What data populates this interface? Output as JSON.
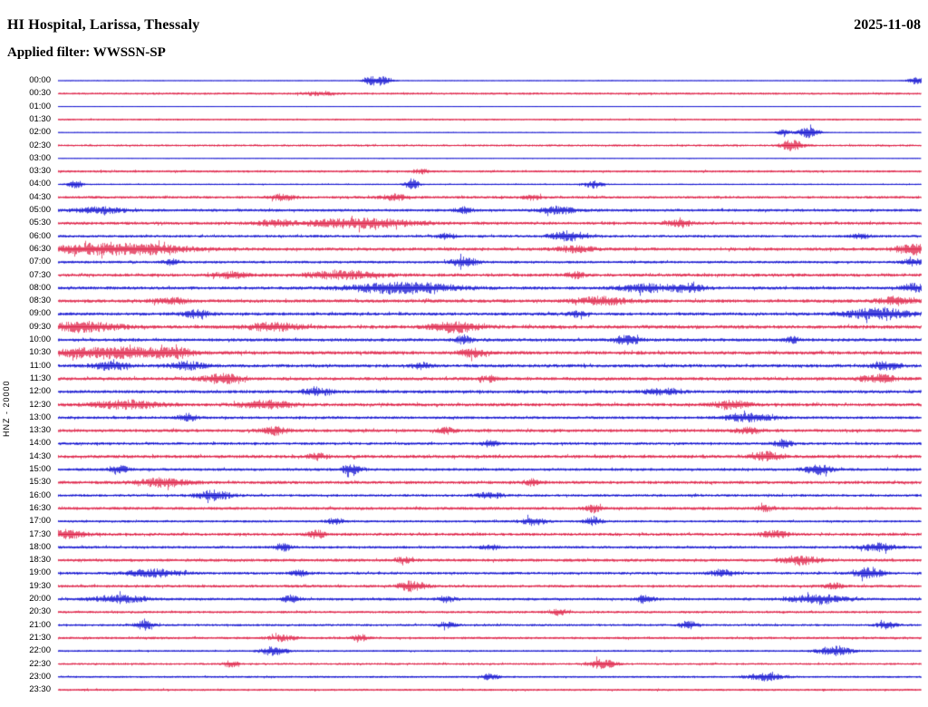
{
  "header": {
    "station_title": "HI Hospital, Larissa, Thessaly",
    "date": "2025-11-08",
    "filter_label": "Applied filter: WWSSN-SP"
  },
  "axis": {
    "vertical_label": "HNZ - 20000"
  },
  "chart_data": {
    "type": "line",
    "subtype": "helicorder-seismogram",
    "title": "HI Hospital, Larissa, Thessaly",
    "date": "2025-11-08",
    "filter": "WWSSN-SP",
    "channel": "HNZ",
    "scale": 20000,
    "minutes_per_line": 30,
    "legend_position": "none",
    "grid": false,
    "trace_colors": {
      "blue": "#0000cd",
      "red": "#dc143c"
    },
    "rows": [
      {
        "time": "00:00",
        "color": "blue",
        "amp": 0.5,
        "bursts": [
          [
            0.374,
            0.012,
            5
          ],
          [
            0.36,
            0.008,
            3
          ],
          [
            0.995,
            0.01,
            4
          ]
        ]
      },
      {
        "time": "00:30",
        "color": "red",
        "amp": 1.2,
        "bursts": [
          [
            0.3,
            0.02,
            1.5
          ]
        ]
      },
      {
        "time": "01:00",
        "color": "blue",
        "amp": 0.4,
        "bursts": []
      },
      {
        "time": "01:30",
        "color": "red",
        "amp": 1.0,
        "bursts": []
      },
      {
        "time": "02:00",
        "color": "blue",
        "amp": 0.5,
        "bursts": [
          [
            0.87,
            0.012,
            6
          ],
          [
            0.84,
            0.008,
            3
          ]
        ]
      },
      {
        "time": "02:30",
        "color": "red",
        "amp": 1.2,
        "bursts": [
          [
            0.85,
            0.012,
            6
          ]
        ]
      },
      {
        "time": "03:00",
        "color": "blue",
        "amp": 0.45,
        "bursts": []
      },
      {
        "time": "03:30",
        "color": "red",
        "amp": 1.3,
        "bursts": [
          [
            0.42,
            0.01,
            2
          ]
        ]
      },
      {
        "time": "04:00",
        "color": "blue",
        "amp": 0.8,
        "bursts": [
          [
            0.02,
            0.008,
            5
          ],
          [
            0.41,
            0.008,
            6
          ],
          [
            0.62,
            0.01,
            4
          ]
        ]
      },
      {
        "time": "04:30",
        "color": "red",
        "amp": 1.5,
        "bursts": [
          [
            0.26,
            0.015,
            3
          ],
          [
            0.39,
            0.015,
            3
          ],
          [
            0.55,
            0.01,
            3
          ]
        ]
      },
      {
        "time": "05:00",
        "color": "blue",
        "amp": 1.6,
        "bursts": [
          [
            0.05,
            0.03,
            3
          ],
          [
            0.47,
            0.01,
            3
          ],
          [
            0.58,
            0.02,
            4
          ]
        ]
      },
      {
        "time": "05:30",
        "color": "red",
        "amp": 1.7,
        "bursts": [
          [
            0.25,
            0.02,
            3
          ],
          [
            0.35,
            0.06,
            5
          ],
          [
            0.72,
            0.015,
            3
          ]
        ]
      },
      {
        "time": "06:00",
        "color": "blue",
        "amp": 1.5,
        "bursts": [
          [
            0.45,
            0.01,
            3
          ],
          [
            0.59,
            0.02,
            5
          ],
          [
            0.93,
            0.01,
            3
          ]
        ]
      },
      {
        "time": "06:30",
        "color": "red",
        "amp": 1.8,
        "bursts": [
          [
            0.07,
            0.07,
            7
          ],
          [
            0.6,
            0.02,
            3
          ],
          [
            0.99,
            0.02,
            5
          ]
        ]
      },
      {
        "time": "07:00",
        "color": "blue",
        "amp": 1.5,
        "bursts": [
          [
            0.13,
            0.01,
            3
          ],
          [
            0.47,
            0.015,
            5
          ],
          [
            0.99,
            0.01,
            4
          ]
        ]
      },
      {
        "time": "07:30",
        "color": "red",
        "amp": 1.9,
        "bursts": [
          [
            0.2,
            0.02,
            3
          ],
          [
            0.33,
            0.04,
            4
          ],
          [
            0.6,
            0.01,
            3
          ]
        ]
      },
      {
        "time": "08:00",
        "color": "blue",
        "amp": 1.8,
        "bursts": [
          [
            0.4,
            0.06,
            6
          ],
          [
            0.68,
            0.03,
            4
          ],
          [
            0.73,
            0.02,
            4
          ],
          [
            0.99,
            0.015,
            4
          ]
        ]
      },
      {
        "time": "08:30",
        "color": "red",
        "amp": 1.9,
        "bursts": [
          [
            0.13,
            0.02,
            3
          ],
          [
            0.63,
            0.03,
            4
          ],
          [
            0.97,
            0.02,
            4
          ]
        ]
      },
      {
        "time": "09:00",
        "color": "blue",
        "amp": 1.8,
        "bursts": [
          [
            0.16,
            0.015,
            4
          ],
          [
            0.6,
            0.01,
            3
          ],
          [
            0.95,
            0.035,
            6
          ]
        ]
      },
      {
        "time": "09:30",
        "color": "red",
        "amp": 2.0,
        "bursts": [
          [
            0.03,
            0.04,
            5
          ],
          [
            0.25,
            0.03,
            4
          ],
          [
            0.46,
            0.025,
            6
          ]
        ]
      },
      {
        "time": "10:00",
        "color": "blue",
        "amp": 1.8,
        "bursts": [
          [
            0.47,
            0.01,
            4
          ],
          [
            0.66,
            0.015,
            5
          ],
          [
            0.85,
            0.01,
            3
          ]
        ]
      },
      {
        "time": "10:30",
        "color": "red",
        "amp": 2.0,
        "bursts": [
          [
            0.07,
            0.07,
            6
          ],
          [
            0.48,
            0.015,
            4
          ],
          [
            0.13,
            0.02,
            4
          ]
        ]
      },
      {
        "time": "11:00",
        "color": "blue",
        "amp": 1.9,
        "bursts": [
          [
            0.06,
            0.02,
            4
          ],
          [
            0.15,
            0.02,
            4
          ],
          [
            0.42,
            0.01,
            3
          ],
          [
            0.96,
            0.015,
            4
          ]
        ]
      },
      {
        "time": "11:30",
        "color": "red",
        "amp": 1.9,
        "bursts": [
          [
            0.19,
            0.02,
            5
          ],
          [
            0.5,
            0.01,
            3
          ],
          [
            0.95,
            0.02,
            4
          ]
        ]
      },
      {
        "time": "12:00",
        "color": "blue",
        "amp": 1.8,
        "bursts": [
          [
            0.3,
            0.02,
            3
          ],
          [
            0.7,
            0.02,
            3
          ]
        ]
      },
      {
        "time": "12:30",
        "color": "red",
        "amp": 1.9,
        "bursts": [
          [
            0.08,
            0.04,
            4
          ],
          [
            0.24,
            0.03,
            4
          ],
          [
            0.78,
            0.02,
            4
          ]
        ]
      },
      {
        "time": "13:00",
        "color": "blue",
        "amp": 1.6,
        "bursts": [
          [
            0.15,
            0.01,
            4
          ],
          [
            0.8,
            0.03,
            4
          ]
        ]
      },
      {
        "time": "13:30",
        "color": "red",
        "amp": 1.8,
        "bursts": [
          [
            0.25,
            0.015,
            4
          ],
          [
            0.45,
            0.01,
            3
          ],
          [
            0.8,
            0.015,
            3
          ]
        ]
      },
      {
        "time": "14:00",
        "color": "blue",
        "amp": 1.6,
        "bursts": [
          [
            0.5,
            0.01,
            3
          ],
          [
            0.84,
            0.01,
            4
          ]
        ]
      },
      {
        "time": "14:30",
        "color": "red",
        "amp": 1.9,
        "bursts": [
          [
            0.3,
            0.01,
            3
          ],
          [
            0.82,
            0.015,
            5
          ]
        ]
      },
      {
        "time": "15:00",
        "color": "blue",
        "amp": 1.6,
        "bursts": [
          [
            0.07,
            0.01,
            4
          ],
          [
            0.34,
            0.01,
            6
          ],
          [
            0.88,
            0.015,
            5
          ]
        ]
      },
      {
        "time": "15:30",
        "color": "red",
        "amp": 1.8,
        "bursts": [
          [
            0.12,
            0.03,
            4
          ],
          [
            0.55,
            0.01,
            3
          ]
        ]
      },
      {
        "time": "16:00",
        "color": "blue",
        "amp": 1.5,
        "bursts": [
          [
            0.18,
            0.02,
            5
          ],
          [
            0.5,
            0.015,
            3
          ]
        ]
      },
      {
        "time": "16:30",
        "color": "red",
        "amp": 1.7,
        "bursts": [
          [
            0.62,
            0.01,
            4
          ],
          [
            0.82,
            0.01,
            3
          ]
        ]
      },
      {
        "time": "17:00",
        "color": "blue",
        "amp": 1.3,
        "bursts": [
          [
            0.32,
            0.01,
            3
          ],
          [
            0.55,
            0.015,
            4
          ],
          [
            0.62,
            0.01,
            4
          ]
        ]
      },
      {
        "time": "17:30",
        "color": "red",
        "amp": 1.7,
        "bursts": [
          [
            0.01,
            0.02,
            4
          ],
          [
            0.3,
            0.01,
            4
          ],
          [
            0.83,
            0.015,
            4
          ]
        ]
      },
      {
        "time": "18:00",
        "color": "blue",
        "amp": 1.5,
        "bursts": [
          [
            0.26,
            0.01,
            4
          ],
          [
            0.5,
            0.01,
            3
          ],
          [
            0.95,
            0.02,
            4
          ]
        ]
      },
      {
        "time": "18:30",
        "color": "red",
        "amp": 1.7,
        "bursts": [
          [
            0.4,
            0.01,
            3
          ],
          [
            0.86,
            0.02,
            5
          ]
        ]
      },
      {
        "time": "19:00",
        "color": "blue",
        "amp": 1.5,
        "bursts": [
          [
            0.11,
            0.03,
            4
          ],
          [
            0.28,
            0.01,
            3
          ],
          [
            0.77,
            0.015,
            3
          ],
          [
            0.94,
            0.015,
            6
          ]
        ]
      },
      {
        "time": "19:30",
        "color": "red",
        "amp": 1.6,
        "bursts": [
          [
            0.41,
            0.015,
            5
          ],
          [
            0.9,
            0.01,
            3
          ]
        ]
      },
      {
        "time": "20:00",
        "color": "blue",
        "amp": 1.5,
        "bursts": [
          [
            0.07,
            0.03,
            4
          ],
          [
            0.27,
            0.01,
            4
          ],
          [
            0.45,
            0.01,
            3
          ],
          [
            0.68,
            0.01,
            4
          ],
          [
            0.88,
            0.03,
            5
          ]
        ]
      },
      {
        "time": "20:30",
        "color": "red",
        "amp": 1.4,
        "bursts": [
          [
            0.58,
            0.01,
            3
          ]
        ]
      },
      {
        "time": "21:00",
        "color": "blue",
        "amp": 1.3,
        "bursts": [
          [
            0.1,
            0.01,
            5
          ],
          [
            0.45,
            0.01,
            3
          ],
          [
            0.73,
            0.01,
            4
          ],
          [
            0.96,
            0.01,
            4
          ]
        ]
      },
      {
        "time": "21:30",
        "color": "red",
        "amp": 1.4,
        "bursts": [
          [
            0.26,
            0.015,
            3
          ],
          [
            0.35,
            0.01,
            3
          ]
        ]
      },
      {
        "time": "22:00",
        "color": "blue",
        "amp": 1.0,
        "bursts": [
          [
            0.25,
            0.015,
            5
          ],
          [
            0.9,
            0.02,
            5
          ]
        ]
      },
      {
        "time": "22:30",
        "color": "red",
        "amp": 1.2,
        "bursts": [
          [
            0.2,
            0.01,
            3
          ],
          [
            0.63,
            0.015,
            5
          ]
        ]
      },
      {
        "time": "23:00",
        "color": "blue",
        "amp": 1.1,
        "bursts": [
          [
            0.5,
            0.01,
            3
          ],
          [
            0.82,
            0.02,
            4
          ]
        ]
      },
      {
        "time": "23:30",
        "color": "red",
        "amp": 1.2,
        "bursts": []
      }
    ]
  }
}
